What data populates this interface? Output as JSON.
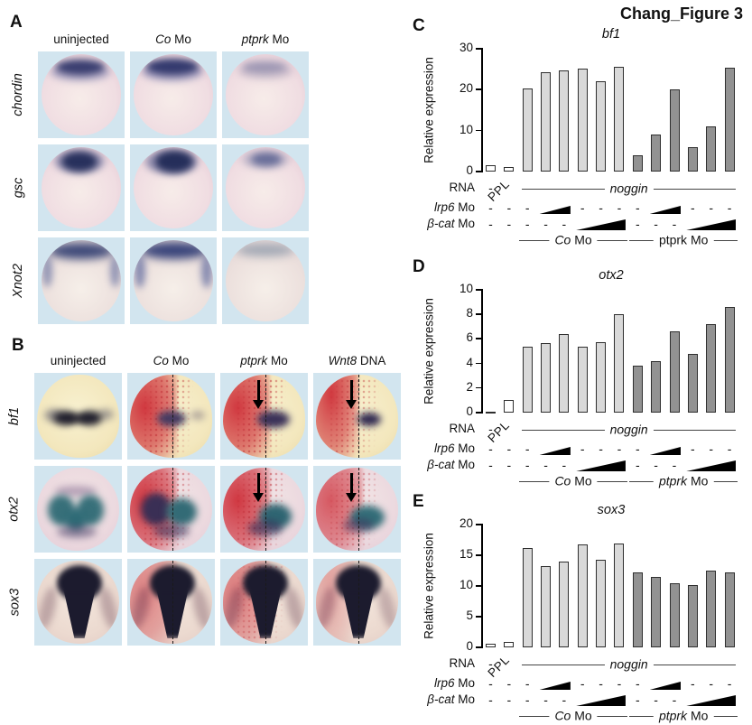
{
  "figure_title": "Chang_Figure 3",
  "panelA": {
    "letter": "A",
    "columns": [
      {
        "em": "",
        "rest": "uninjected"
      },
      {
        "em": "Co",
        "rest": " Mo"
      },
      {
        "em": "ptprk",
        "rest": " Mo"
      }
    ],
    "rows": [
      "chordin",
      "gsc",
      "Xnot2"
    ]
  },
  "panelB": {
    "letter": "B",
    "columns": [
      {
        "em": "",
        "rest": "uninjected"
      },
      {
        "em": "Co",
        "rest": " Mo"
      },
      {
        "em": "ptprk",
        "rest": " Mo"
      },
      {
        "em": "Wnt8",
        "rest": " DNA"
      }
    ],
    "rows": [
      "bf1",
      "otx2",
      "sox3"
    ]
  },
  "chart_data": [
    {
      "type": "bar",
      "panel": "C",
      "title": "bf1",
      "ylabel": "Relative expression",
      "ylim": [
        0,
        30
      ],
      "yticks": [
        0,
        10,
        20,
        30
      ],
      "values": [
        1.5,
        1,
        20.3,
        24.3,
        24.6,
        25.2,
        22,
        25.5,
        4,
        9,
        20.1,
        6,
        11,
        25.3
      ],
      "shades": [
        "white",
        "white",
        "light",
        "light",
        "light",
        "light",
        "light",
        "light",
        "dark",
        "dark",
        "dark",
        "dark",
        "dark",
        "dark"
      ],
      "groups": [
        {
          "em": "Co",
          "rest": " Mo"
        },
        {
          "em": "",
          "rest": "ptprk Mo"
        }
      ]
    },
    {
      "type": "bar",
      "panel": "D",
      "title": "otx2",
      "ylabel": "Relative expression",
      "ylim": [
        0,
        10
      ],
      "yticks": [
        0,
        2,
        4,
        6,
        8,
        10
      ],
      "values": [
        0.1,
        1,
        5.4,
        5.65,
        6.4,
        5.4,
        5.75,
        8.05,
        3.85,
        4.2,
        6.6,
        4.75,
        7.2,
        8.6
      ],
      "shades": [
        "white",
        "white",
        "light",
        "light",
        "light",
        "light",
        "light",
        "light",
        "dark",
        "dark",
        "dark",
        "dark",
        "dark",
        "dark"
      ],
      "groups": [
        {
          "em": "Co",
          "rest": " Mo"
        },
        {
          "em": "ptprk",
          "rest": " Mo"
        }
      ]
    },
    {
      "type": "bar",
      "panel": "E",
      "title": "sox3",
      "ylabel": "Relative expression",
      "ylim": [
        0,
        20
      ],
      "yticks": [
        0,
        5,
        10,
        15,
        20
      ],
      "values": [
        0.6,
        0.9,
        16.2,
        13.3,
        14,
        16.7,
        14.2,
        16.9,
        12.2,
        11.4,
        10.5,
        10.1,
        12.5,
        12.2
      ],
      "shades": [
        "white",
        "white",
        "light",
        "light",
        "light",
        "light",
        "light",
        "light",
        "dark",
        "dark",
        "dark",
        "dark",
        "dark",
        "dark"
      ],
      "groups": [
        {
          "em": "Co",
          "rest": " Mo"
        },
        {
          "em": "ptprk",
          "rest": " Mo"
        }
      ]
    }
  ],
  "xaxis_annotation": {
    "rna_label": "RNA",
    "minus": "-",
    "ppl": "PPL",
    "noggin": "noggin",
    "noggin_span": {
      "from": 2,
      "to": 13
    },
    "lrp6_em": "lrp6",
    "lrp6_rest": " Mo",
    "lrp6_dashes": [
      0,
      1,
      2,
      5,
      6,
      7,
      8,
      11,
      12,
      13
    ],
    "lrp6_wedges": [
      {
        "from": 3,
        "to": 4
      },
      {
        "from": 9,
        "to": 10
      }
    ],
    "bcat_em": "β-cat",
    "bcat_rest": " Mo",
    "bcat_dashes": [
      0,
      1,
      2,
      3,
      4,
      8,
      9,
      10
    ],
    "bcat_wedges": [
      {
        "from": 5,
        "to": 7
      },
      {
        "from": 11,
        "to": 13
      }
    ],
    "group_spans": [
      {
        "from": 2,
        "to": 7
      },
      {
        "from": 8,
        "to": 13
      }
    ]
  },
  "colors": {
    "bar_white": "#ffffff",
    "bar_light": "#d9d9d9",
    "bar_dark": "#929292",
    "bar_border": "#2e2e2e",
    "tile_background": "#d2e5ef",
    "red_tracer": "#ce2d37",
    "teal_stain": "#2f6b76",
    "dark_stain": "#1c1b2e"
  }
}
